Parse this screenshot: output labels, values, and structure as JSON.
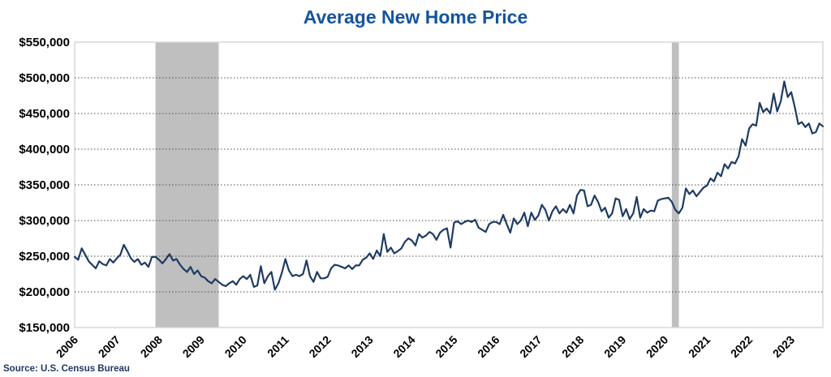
{
  "chart_data": {
    "type": "line",
    "title": "Average New Home Price",
    "source": "Source: U.S. Census Bureau",
    "x_start": "2006-01",
    "x_end": "2023-10",
    "x_tick_labels": [
      "2006",
      "2007",
      "2008",
      "2009",
      "2010",
      "2011",
      "2012",
      "2013",
      "2014",
      "2015",
      "2016",
      "2017",
      "2018",
      "2019",
      "2020",
      "2021",
      "2022",
      "2023"
    ],
    "y_tick_labels": [
      "$150,000",
      "$200,000",
      "$250,000",
      "$300,000",
      "$350,000",
      "$400,000",
      "$450,000",
      "$500,000",
      "$550,000"
    ],
    "ylim": [
      150000,
      550000
    ],
    "y_step": 50000,
    "grid": "dotted-horizontal",
    "legend": "none",
    "recession_bands": [
      {
        "from": "2007-12",
        "to": "2009-06"
      },
      {
        "from": "2020-03",
        "to": "2020-05"
      }
    ],
    "colors": {
      "line": "#1f3b63",
      "title": "#15549c",
      "source": "#1f3864",
      "band": "#bfbfbf",
      "plot_border": "#d2d2d2",
      "gridline": "#4d4d4d",
      "tick_text": "#000000"
    },
    "series": [
      {
        "name": "Average New Home Price",
        "unit": "USD",
        "frequency": "monthly",
        "monthly_values": [
          249000,
          245000,
          261000,
          252000,
          243000,
          238000,
          233000,
          243000,
          239000,
          237000,
          246000,
          241000,
          247000,
          252000,
          266000,
          257000,
          247000,
          242000,
          246000,
          238000,
          241000,
          235000,
          249000,
          249000,
          245000,
          240000,
          246000,
          253000,
          244000,
          246000,
          238000,
          232000,
          228000,
          235000,
          225000,
          230000,
          222000,
          220000,
          215000,
          212000,
          218000,
          214000,
          210000,
          208000,
          212000,
          215000,
          210000,
          218000,
          222000,
          218000,
          224000,
          207000,
          209000,
          236000,
          212000,
          222000,
          228000,
          203000,
          212000,
          227000,
          246000,
          230000,
          222000,
          224000,
          222000,
          225000,
          244000,
          222000,
          214000,
          228000,
          219000,
          219000,
          221000,
          233000,
          238000,
          237000,
          235000,
          233000,
          237000,
          232000,
          237000,
          237000,
          245000,
          248000,
          254000,
          246000,
          258000,
          250000,
          281000,
          256000,
          262000,
          254000,
          257000,
          261000,
          270000,
          275000,
          272000,
          265000,
          281000,
          276000,
          279000,
          284000,
          281000,
          273000,
          283000,
          287000,
          289000,
          262000,
          297000,
          299000,
          295000,
          298000,
          300000,
          298000,
          301000,
          290000,
          287000,
          284000,
          295000,
          298000,
          298000,
          295000,
          308000,
          295000,
          283000,
          303000,
          295000,
          300000,
          311000,
          292000,
          311000,
          301000,
          307000,
          322000,
          315000,
          300000,
          313000,
          320000,
          310000,
          316000,
          311000,
          322000,
          310000,
          335000,
          343000,
          342000,
          320000,
          322000,
          335000,
          326000,
          313000,
          318000,
          304000,
          310000,
          331000,
          329000,
          306000,
          316000,
          302000,
          310000,
          333000,
          304000,
          316000,
          311000,
          314000,
          313000,
          328000,
          330000,
          331000,
          332000,
          326000,
          315000,
          310000,
          318000,
          345000,
          337000,
          342000,
          334000,
          340000,
          346000,
          349000,
          359000,
          355000,
          367000,
          362000,
          379000,
          373000,
          382000,
          380000,
          390000,
          414000,
          405000,
          429000,
          435000,
          433000,
          465000,
          452000,
          457000,
          450000,
          478000,
          453000,
          467000,
          495000,
          473000,
          480000,
          459000,
          435000,
          438000,
          431000,
          436000,
          422000,
          424000,
          436000,
          432000
        ]
      }
    ]
  }
}
